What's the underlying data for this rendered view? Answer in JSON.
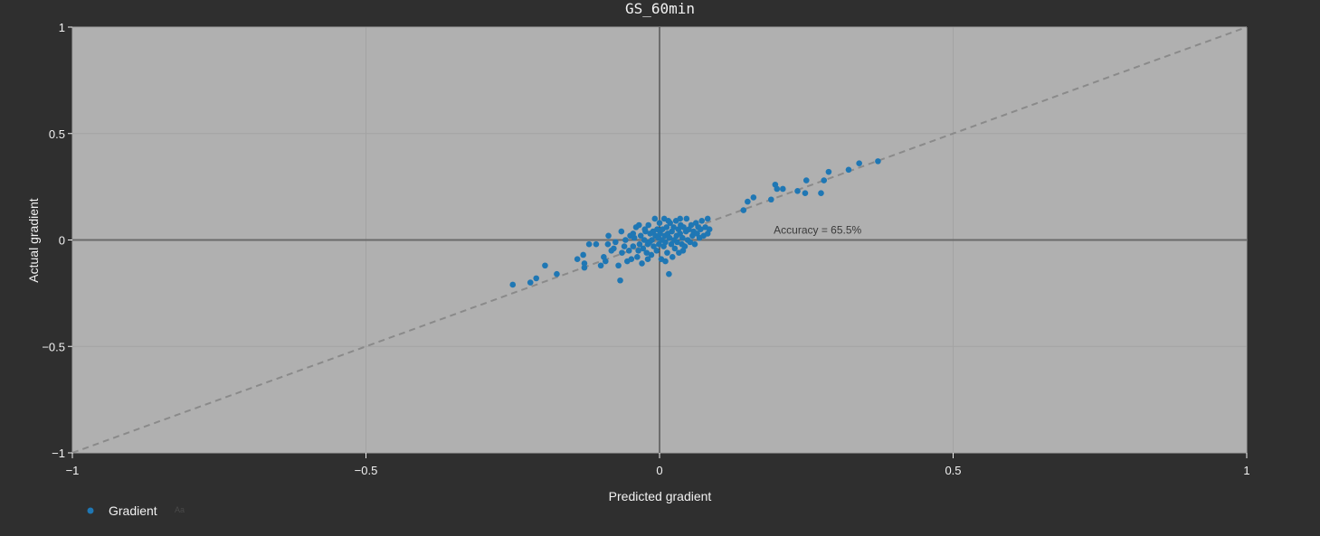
{
  "chart_data": {
    "type": "scatter",
    "title": "GS_60min",
    "xlabel": "Predicted gradient",
    "ylabel": "Actual gradient",
    "xlim": [
      -1,
      1
    ],
    "ylim": [
      -1,
      1
    ],
    "xticks": [
      {
        "value": -1,
        "label": "−1"
      },
      {
        "value": -0.5,
        "label": "−0.5"
      },
      {
        "value": 0,
        "label": "0"
      },
      {
        "value": 0.5,
        "label": "0.5"
      },
      {
        "value": 1,
        "label": "1"
      }
    ],
    "yticks": [
      {
        "value": -1,
        "label": "−1"
      },
      {
        "value": -0.5,
        "label": "−0.5"
      },
      {
        "value": 0,
        "label": "0"
      },
      {
        "value": 0.5,
        "label": "0.5"
      },
      {
        "value": 1,
        "label": "1"
      }
    ],
    "grid": true,
    "background_color": "#b0b0b0",
    "marker_color": "#1f77b4",
    "reference_line": {
      "from": [
        -1,
        -1
      ],
      "to": [
        1,
        1
      ],
      "style": "dashed",
      "color": "#8a8a8a"
    },
    "annotation": {
      "text": "Accuracy = 65.5%",
      "x": 0.3,
      "y": 0.05
    },
    "legend": {
      "position": "bottom-left",
      "hint": "Aa"
    },
    "series": [
      {
        "name": "Gradient",
        "points": [
          [
            -0.25,
            -0.21
          ],
          [
            -0.22,
            -0.2
          ],
          [
            -0.21,
            -0.18
          ],
          [
            -0.195,
            -0.12
          ],
          [
            -0.175,
            -0.16
          ],
          [
            -0.14,
            -0.09
          ],
          [
            -0.13,
            -0.07
          ],
          [
            -0.128,
            -0.11
          ],
          [
            -0.128,
            -0.13
          ],
          [
            -0.12,
            -0.02
          ],
          [
            -0.108,
            -0.02
          ],
          [
            -0.1,
            -0.12
          ],
          [
            -0.095,
            -0.08
          ],
          [
            -0.092,
            -0.1
          ],
          [
            -0.088,
            -0.02
          ],
          [
            -0.087,
            0.02
          ],
          [
            -0.082,
            -0.05
          ],
          [
            -0.078,
            -0.04
          ],
          [
            -0.07,
            -0.12
          ],
          [
            -0.067,
            -0.19
          ],
          [
            -0.064,
            -0.06
          ],
          [
            -0.06,
            -0.03
          ],
          [
            -0.058,
            0.0
          ],
          [
            -0.055,
            -0.1
          ],
          [
            -0.052,
            -0.05
          ],
          [
            -0.05,
            0.02
          ],
          [
            -0.048,
            -0.09
          ],
          [
            -0.045,
            -0.03
          ],
          [
            -0.043,
            0.01
          ],
          [
            -0.04,
            0.06
          ],
          [
            -0.038,
            -0.08
          ],
          [
            -0.036,
            -0.05
          ],
          [
            -0.034,
            -0.02
          ],
          [
            -0.032,
            0.02
          ],
          [
            -0.03,
            -0.11
          ],
          [
            -0.028,
            -0.04
          ],
          [
            -0.026,
            0.0
          ],
          [
            -0.024,
            0.04
          ],
          [
            -0.022,
            -0.06
          ],
          [
            -0.02,
            -0.02
          ],
          [
            -0.019,
            0.07
          ],
          [
            -0.017,
            -0.01
          ],
          [
            -0.016,
            0.03
          ],
          [
            -0.014,
            -0.07
          ],
          [
            -0.013,
            0.0
          ],
          [
            -0.011,
            0.04
          ],
          [
            -0.01,
            -0.03
          ],
          [
            -0.008,
            0.1
          ],
          [
            -0.007,
            0.02
          ],
          [
            -0.005,
            -0.05
          ],
          [
            -0.004,
            0.05
          ],
          [
            -0.002,
            0.01
          ],
          [
            -0.001,
            -0.02
          ],
          [
            0.0,
            0.08
          ],
          [
            0.001,
            0.03
          ],
          [
            0.003,
            -0.09
          ],
          [
            0.004,
            0.0
          ],
          [
            0.005,
            0.05
          ],
          [
            0.007,
            -0.03
          ],
          [
            0.008,
            0.1
          ],
          [
            0.009,
            0.02
          ],
          [
            0.01,
            -0.01
          ],
          [
            0.012,
            0.06
          ],
          [
            0.013,
            -0.06
          ],
          [
            0.014,
            0.03
          ],
          [
            0.016,
            -0.16
          ],
          [
            0.017,
            0.01
          ],
          [
            0.018,
            0.08
          ],
          [
            0.02,
            -0.02
          ],
          [
            0.021,
            0.04
          ],
          [
            0.022,
            -0.08
          ],
          [
            0.024,
            0.06
          ],
          [
            0.025,
            0.0
          ],
          [
            0.026,
            -0.04
          ],
          [
            0.028,
            0.09
          ],
          [
            0.029,
            0.02
          ],
          [
            0.03,
            -0.01
          ],
          [
            0.032,
            0.05
          ],
          [
            0.033,
            -0.06
          ],
          [
            0.035,
            0.03
          ],
          [
            0.036,
            0.07
          ],
          [
            0.038,
            -0.02
          ],
          [
            0.039,
            0.01
          ],
          [
            0.041,
            0.06
          ],
          [
            0.043,
            -0.03
          ],
          [
            0.045,
            0.04
          ],
          [
            0.046,
            0.1
          ],
          [
            0.048,
            0.0
          ],
          [
            0.05,
            0.05
          ],
          [
            0.052,
            -0.01
          ],
          [
            0.054,
            0.07
          ],
          [
            0.056,
            0.02
          ],
          [
            0.058,
            0.04
          ],
          [
            0.06,
            -0.02
          ],
          [
            0.062,
            0.08
          ],
          [
            0.064,
            0.03
          ],
          [
            0.066,
            0.06
          ],
          [
            0.068,
            0.01
          ],
          [
            0.07,
            0.05
          ],
          [
            0.072,
            0.09
          ],
          [
            0.075,
            0.02
          ],
          [
            0.078,
            0.06
          ],
          [
            0.082,
            0.03
          ],
          [
            0.085,
            0.05
          ],
          [
            0.082,
            0.1
          ],
          [
            -0.065,
            0.04
          ],
          [
            -0.035,
            0.07
          ],
          [
            -0.02,
            -0.09
          ],
          [
            0.01,
            -0.1
          ],
          [
            0.04,
            -0.05
          ],
          [
            -0.045,
            0.03
          ],
          [
            -0.025,
            0.05
          ],
          [
            0.015,
            0.09
          ],
          [
            0.035,
            0.1
          ],
          [
            -0.075,
            -0.01
          ],
          [
            0.143,
            0.14
          ],
          [
            0.15,
            0.18
          ],
          [
            0.16,
            0.2
          ],
          [
            0.19,
            0.19
          ],
          [
            0.197,
            0.26
          ],
          [
            0.2,
            0.24
          ],
          [
            0.21,
            0.24
          ],
          [
            0.235,
            0.23
          ],
          [
            0.248,
            0.22
          ],
          [
            0.25,
            0.28
          ],
          [
            0.275,
            0.22
          ],
          [
            0.28,
            0.28
          ],
          [
            0.288,
            0.32
          ],
          [
            0.322,
            0.33
          ],
          [
            0.34,
            0.36
          ],
          [
            0.372,
            0.37
          ]
        ]
      }
    ]
  }
}
